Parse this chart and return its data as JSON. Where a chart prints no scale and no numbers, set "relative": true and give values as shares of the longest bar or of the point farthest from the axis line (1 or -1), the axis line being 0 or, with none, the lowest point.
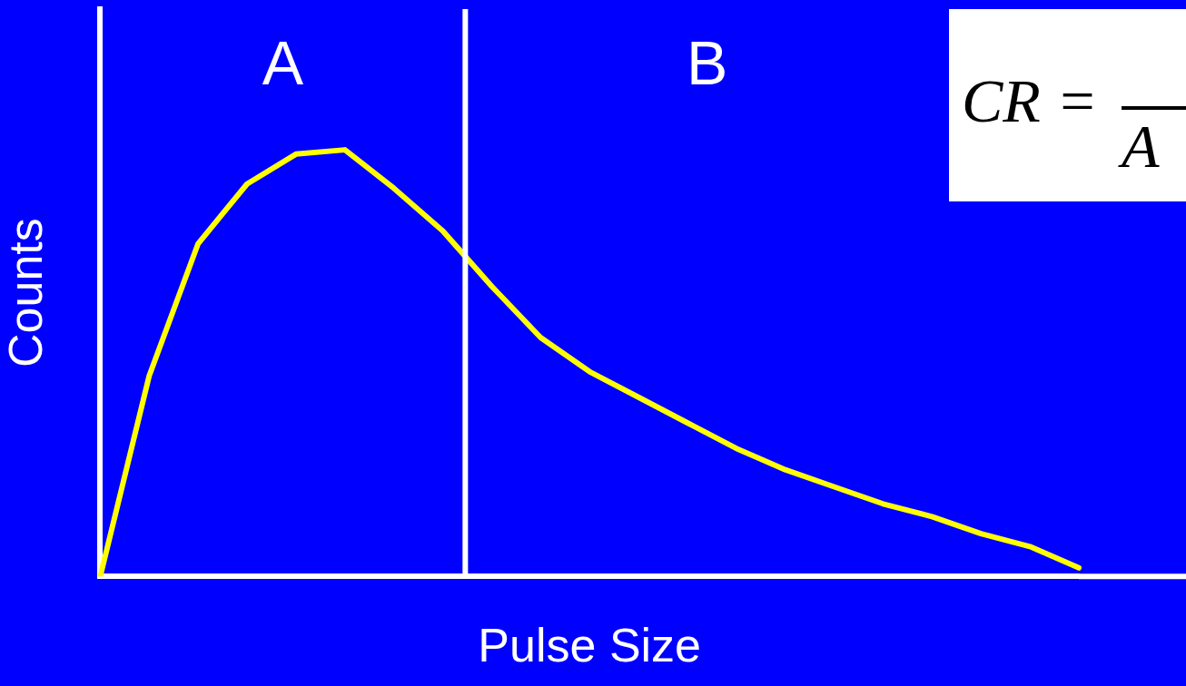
{
  "chart_data": {
    "type": "line",
    "relative": true,
    "xlabel": "Pulse Size",
    "ylabel": "Counts",
    "categories": [
      null,
      null,
      null,
      null,
      null,
      null,
      null,
      null,
      null,
      null,
      null,
      null,
      null,
      null,
      null,
      null,
      null,
      null,
      null,
      null,
      null
    ],
    "series": [
      {
        "color": "#ffff00",
        "values": [
          0,
          0.47,
          0.78,
          0.92,
          0.99,
          1,
          0.91,
          0.81,
          0.68,
          0.56,
          0.48,
          0.42,
          0.36,
          0.3,
          0.25,
          0.21,
          0.17,
          0.14,
          0.1,
          0.07,
          0.02
        ]
      }
    ],
    "annotations": [
      "A",
      "B",
      "CR =",
      "A"
    ],
    "legend": false,
    "marker": "none",
    "line_style": "solid"
  }
}
